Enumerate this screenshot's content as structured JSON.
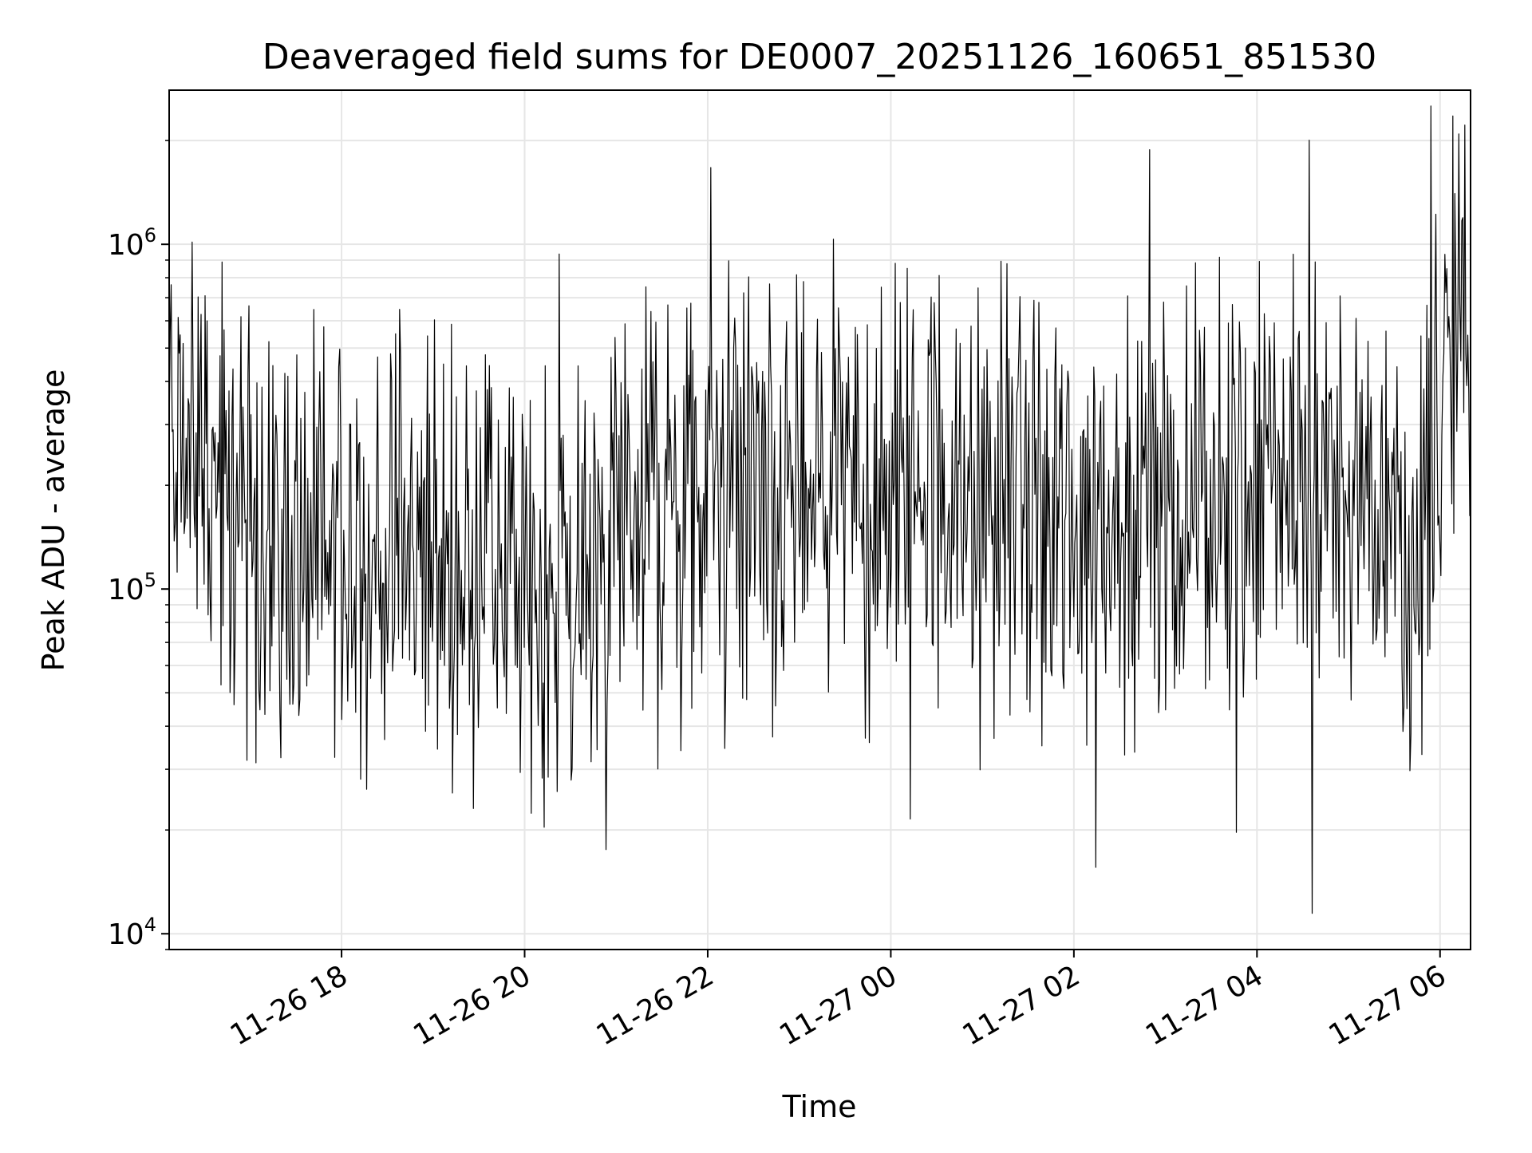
{
  "chart_data": {
    "type": "line",
    "title": "Deaveraged field sums for DE0007_20251126_160651_851530",
    "xlabel": "Time",
    "ylabel": "Peak ADU - average",
    "y_scale": "log",
    "ylim": [
      9000,
      2800000
    ],
    "xlim": [
      "2025-11-26 16:07",
      "2025-11-27 06:20"
    ],
    "x_tick_labels": [
      "11-26 18",
      "11-26 20",
      "11-26 22",
      "11-27 00",
      "11-27 02",
      "11-27 04",
      "11-27 06"
    ],
    "x_tick_times": [
      "2025-11-26 18:00",
      "2025-11-26 20:00",
      "2025-11-26 22:00",
      "2025-11-27 00:00",
      "2025-11-27 02:00",
      "2025-11-27 04:00",
      "2025-11-27 06:00"
    ],
    "y_ticks": [
      {
        "value": 10000,
        "base": "10",
        "exp": "4"
      },
      {
        "value": 100000,
        "base": "10",
        "exp": "5"
      },
      {
        "value": 1000000,
        "base": "10",
        "exp": "6"
      }
    ],
    "grid": true,
    "line_color": "#000000",
    "series": [
      {
        "x": [
          "2025-11-26 16:07",
          "2025-11-26 16:20",
          "2025-11-26 16:35",
          "2025-11-26 16:50",
          "2025-11-26 17:05",
          "2025-11-26 17:20",
          "2025-11-26 17:40",
          "2025-11-26 18:00",
          "2025-11-26 18:20",
          "2025-11-26 18:40",
          "2025-11-26 19:00",
          "2025-11-26 19:20",
          "2025-11-26 19:40",
          "2025-11-26 20:00",
          "2025-11-26 20:20",
          "2025-11-26 20:40",
          "2025-11-26 21:00",
          "2025-11-26 21:20",
          "2025-11-26 21:40",
          "2025-11-26 22:00",
          "2025-11-26 22:20",
          "2025-11-26 22:40",
          "2025-11-26 23:00",
          "2025-11-26 23:20",
          "2025-11-26 23:40",
          "2025-11-27 00:00",
          "2025-11-27 00:20",
          "2025-11-27 00:40",
          "2025-11-27 01:00",
          "2025-11-27 01:20",
          "2025-11-27 01:40",
          "2025-11-27 02:00",
          "2025-11-27 02:20",
          "2025-11-27 02:40",
          "2025-11-27 03:00",
          "2025-11-27 03:20",
          "2025-11-27 03:40",
          "2025-11-27 04:00",
          "2025-11-27 04:20",
          "2025-11-27 04:40",
          "2025-11-27 05:00",
          "2025-11-27 05:20",
          "2025-11-27 05:40",
          "2025-11-27 05:50",
          "2025-11-27 06:00",
          "2025-11-27 06:10",
          "2025-11-27 06:20"
        ],
        "values": [
          300000,
          260000,
          200000,
          150000,
          160000,
          140000,
          135000,
          130000,
          130000,
          125000,
          120000,
          115000,
          110000,
          105000,
          95000,
          85000,
          150000,
          170000,
          180000,
          175000,
          180000,
          185000,
          180000,
          175000,
          185000,
          190000,
          195000,
          180000,
          170000,
          175000,
          170000,
          165000,
          170000,
          175000,
          180000,
          185000,
          190000,
          200000,
          210000,
          190000,
          170000,
          150000,
          140000,
          180000,
          450000,
          550000,
          520000
        ]
      }
    ],
    "annotations": []
  }
}
